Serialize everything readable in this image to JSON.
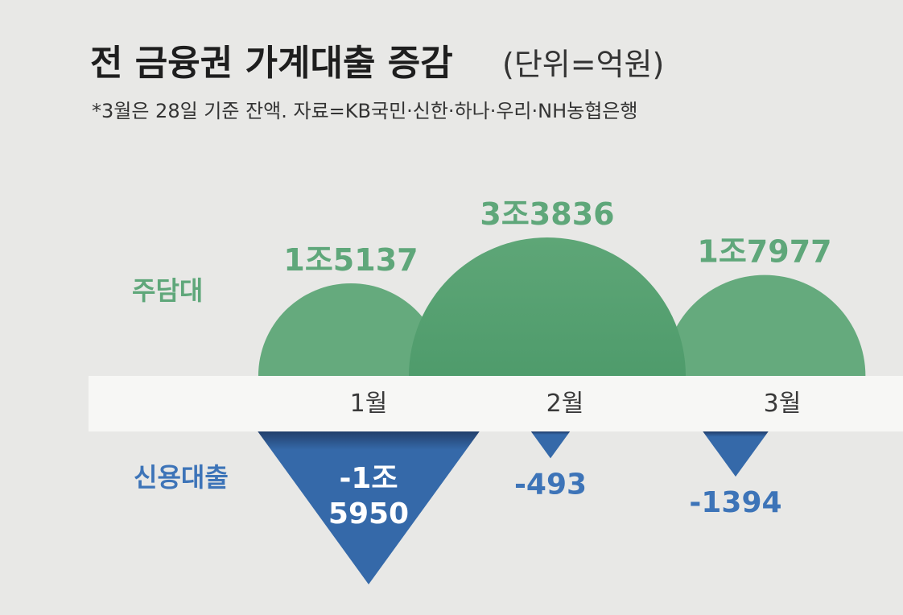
{
  "colors": {
    "background": "#e8e8e6",
    "band": "#f7f7f5",
    "green": "#5ea677",
    "green_dark": "#3f9160",
    "green_text": "#5fa77a",
    "blue": "#3569a9",
    "blue_dark": "#223f6b",
    "blue_text": "#3d74b8",
    "white": "#ffffff"
  },
  "header": {
    "title": "전 금융권 가계대출 증감",
    "unit": "(단위=억원)",
    "note": "*3월은 28일 기준 잔액. 자료=KB국민·신한·하나·우리·NH농협은행"
  },
  "chart_data": {
    "type": "bar",
    "categories": [
      "1월",
      "2월",
      "3월"
    ],
    "series": [
      {
        "name": "주담대",
        "values": [
          15137,
          33836,
          17977
        ],
        "labels": [
          "1조5137",
          "3조3836",
          "1조7977"
        ]
      },
      {
        "name": "신용대출",
        "values": [
          -15950,
          -493,
          -1394
        ],
        "labels": [
          [
            "-1조",
            "5950"
          ],
          [
            "-493"
          ],
          [
            "-1394"
          ]
        ]
      }
    ]
  }
}
